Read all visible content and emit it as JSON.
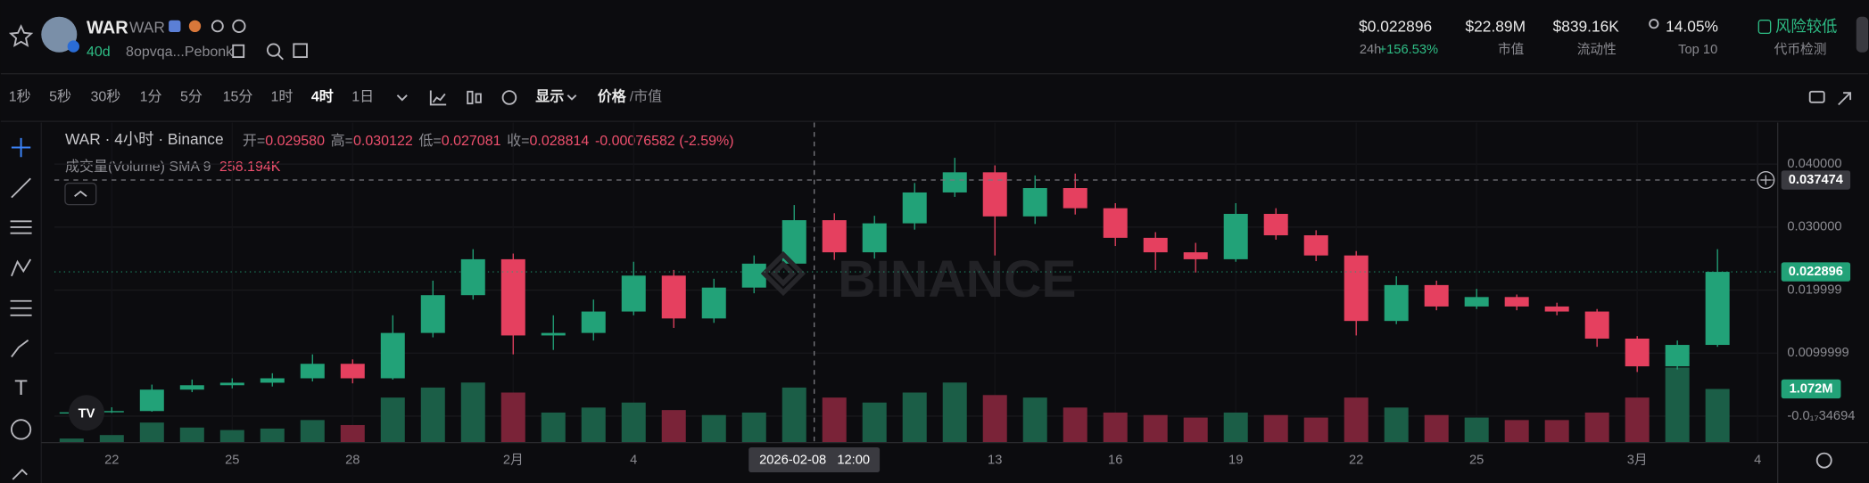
{
  "header": {
    "name": "WAR",
    "ticker": "WAR",
    "age": "40d",
    "address": "8opvqa...Pebonk",
    "price": "$0.022896",
    "change_label": "24h",
    "change": "+156.53%",
    "market_cap": "$22.89M",
    "market_cap_label": "市值",
    "liquidity": "$839.16K",
    "liquidity_label": "流动性",
    "top_holders": "14.05%",
    "top_holders_label": "Top 10",
    "risk": "风险较低",
    "risk_label": "代币检测"
  },
  "toolbar": {
    "intervals": [
      "1秒",
      "5秒",
      "30秒",
      "1分",
      "5分",
      "15分",
      "1时",
      "4时",
      "1日"
    ],
    "display": "显示",
    "price": "价格",
    "separator": "/",
    "market_cap": "市值"
  },
  "chart_data": {
    "type": "candlestick",
    "symbol_line": "WAR · 4小时 · Binance",
    "ohlc_legend": {
      "open_label": "开=",
      "open": "0.029580",
      "high_label": "高=",
      "high": "0.030122",
      "low_label": "低=",
      "low": "0.027081",
      "close_label": "收=",
      "close": "0.028814",
      "change": "-0.00076582 (-2.59%)"
    },
    "volume_legend": {
      "name": "成交量(Volume) SMA 9",
      "value": "258.194K"
    },
    "watermark": "BINANCE",
    "crosshair_price": 0.037474,
    "crosshair_date": "2026-02-08",
    "crosshair_time": "12:00",
    "last_price": 0.022896,
    "last_volume_label": "1.072M",
    "up_color": "#22a278",
    "down_color": "#e5405f",
    "volume_up_color": "#1b5e47",
    "volume_down_color": "#7a2338",
    "grid": true,
    "open": [
      0.0004,
      0.0006,
      0.0008,
      0.0042,
      0.0049,
      0.0053,
      0.006,
      0.0083,
      0.006,
      0.0132,
      0.0192,
      0.0249,
      0.0128,
      0.0132,
      0.0166,
      0.0223,
      0.0155,
      0.0204,
      0.0242,
      0.0311,
      0.026,
      0.0306,
      0.0355,
      0.0387,
      0.0317,
      0.0362,
      0.033,
      0.0283,
      0.026,
      0.0249,
      0.0321,
      0.0287,
      0.0255,
      0.0151,
      0.0208,
      0.0174,
      0.0189,
      0.0174,
      0.0166,
      0.0123,
      0.0079,
      0.0113
    ],
    "high": [
      0.001,
      0.0014,
      0.005,
      0.0058,
      0.006,
      0.0068,
      0.0098,
      0.009,
      0.016,
      0.0215,
      0.0265,
      0.0258,
      0.016,
      0.0185,
      0.0245,
      0.0232,
      0.0218,
      0.0255,
      0.0335,
      0.0322,
      0.0318,
      0.037,
      0.041,
      0.0398,
      0.0382,
      0.0385,
      0.0338,
      0.0292,
      0.0275,
      0.0338,
      0.033,
      0.0295,
      0.0262,
      0.0222,
      0.0215,
      0.0202,
      0.0193,
      0.018,
      0.017,
      0.0127,
      0.012,
      0.0265
    ],
    "low": [
      0.0003,
      0.0005,
      0.0007,
      0.0038,
      0.0044,
      0.0047,
      0.0055,
      0.0052,
      0.0058,
      0.0125,
      0.0185,
      0.0098,
      0.0105,
      0.012,
      0.016,
      0.014,
      0.0148,
      0.0195,
      0.0236,
      0.0248,
      0.025,
      0.0296,
      0.0348,
      0.0255,
      0.0305,
      0.032,
      0.027,
      0.0232,
      0.0228,
      0.0245,
      0.028,
      0.0246,
      0.0128,
      0.0146,
      0.0168,
      0.017,
      0.0168,
      0.016,
      0.011,
      0.007,
      0.0074,
      0.011
    ],
    "close": [
      0.0006,
      0.0008,
      0.0042,
      0.0049,
      0.0053,
      0.006,
      0.0083,
      0.006,
      0.0132,
      0.0192,
      0.0249,
      0.0128,
      0.0132,
      0.0166,
      0.0223,
      0.0155,
      0.0204,
      0.0242,
      0.0311,
      0.026,
      0.0306,
      0.0355,
      0.0387,
      0.0317,
      0.0362,
      0.033,
      0.0283,
      0.026,
      0.0249,
      0.0321,
      0.0287,
      0.0255,
      0.0151,
      0.0208,
      0.0174,
      0.0189,
      0.0174,
      0.0166,
      0.0123,
      0.0079,
      0.0113,
      0.022896
    ],
    "volume": [
      80000,
      150000,
      400000,
      300000,
      250000,
      280000,
      450000,
      350000,
      900000,
      1100000,
      1200000,
      1000000,
      600000,
      700000,
      800000,
      650000,
      550000,
      600000,
      1100000,
      900000,
      800000,
      1000000,
      1200000,
      950000,
      900000,
      700000,
      600000,
      550000,
      500000,
      600000,
      550000,
      500000,
      900000,
      700000,
      550000,
      500000,
      450000,
      450000,
      600000,
      900000,
      1500000,
      1072000
    ],
    "vlim": [
      0,
      6400000
    ],
    "xlim": [
      -0.43,
      42.5
    ],
    "ylim": [
      -0.0042,
      0.0466
    ],
    "yticks": [
      {
        "value": 0.04,
        "label": "0.040000"
      },
      {
        "value": 0.03,
        "label": "0.030000"
      },
      0.019999,
      0.0099999,
      {
        "value": -3.4694e-18,
        "label": "-0.0₁₇34694"
      }
    ],
    "xticks": [
      {
        "value": 1,
        "label": "22"
      },
      {
        "value": 4,
        "label": "25"
      },
      {
        "value": 7,
        "label": "28"
      },
      {
        "value": 11,
        "label": "2月"
      },
      {
        "value": 14,
        "label": "4"
      },
      {
        "value": 23,
        "label": "13"
      },
      {
        "value": 26,
        "label": "16"
      },
      {
        "value": 29,
        "label": "19"
      },
      {
        "value": 32,
        "label": "22"
      },
      {
        "value": 35,
        "label": "25"
      },
      {
        "value": 39,
        "label": "3月"
      },
      {
        "value": 42,
        "label": "4"
      }
    ]
  }
}
